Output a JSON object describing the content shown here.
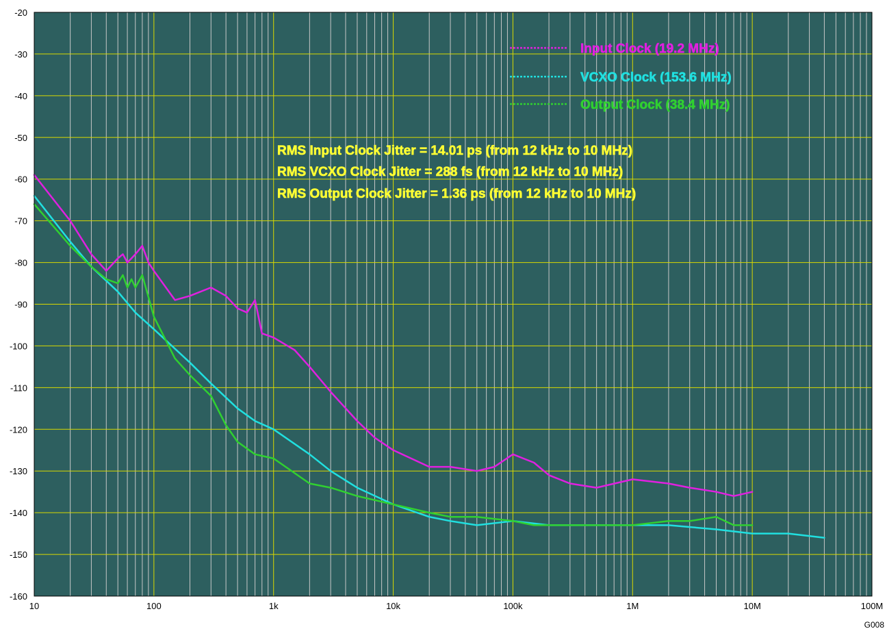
{
  "chart_data": {
    "type": "line",
    "x_scale": "log",
    "xlim": [
      10,
      100000000
    ],
    "ylim": [
      -160,
      -20
    ],
    "x_tick_values": [
      10,
      100,
      1000,
      10000,
      100000,
      1000000,
      10000000,
      100000000
    ],
    "x_tick_labels": [
      "10",
      "100",
      "1k",
      "10k",
      "100k",
      "1M",
      "10M",
      "100M"
    ],
    "y_tick_values": [
      -20,
      -30,
      -40,
      -50,
      -60,
      -70,
      -80,
      -90,
      -100,
      -110,
      -120,
      -130,
      -140,
      -150,
      -160
    ],
    "y_tick_labels": [
      "-20",
      "-30",
      "-40",
      "-50",
      "-60",
      "-70",
      "-80",
      "-90",
      "-100",
      "-110",
      "-120",
      "-130",
      "-140",
      "-150",
      "-160"
    ],
    "grid": true,
    "legend_position": "top-right",
    "colors": {
      "plot_background": "#2d5f5f",
      "major_grid": "#d9d900",
      "minor_grid": "#c8c8c8",
      "annotation": "#ffff33"
    },
    "series": [
      {
        "name": "Input Clock (19.2 MHz)",
        "color": "#e020e0",
        "x": [
          10,
          20,
          30,
          40,
          50,
          55,
          60,
          65,
          70,
          80,
          90,
          100,
          150,
          200,
          300,
          400,
          500,
          600,
          700,
          800,
          1000,
          1500,
          2000,
          3000,
          5000,
          7000,
          10000,
          20000,
          30000,
          50000,
          70000,
          100000,
          150000,
          200000,
          300000,
          500000,
          1000000,
          2000000,
          3000000,
          5000000,
          7000000,
          10000000
        ],
        "values": [
          -59,
          -70,
          -78,
          -82,
          -79,
          -78,
          -80,
          -79,
          -78,
          -76,
          -80,
          -82,
          -89,
          -88,
          -86,
          -88,
          -91,
          -92,
          -89,
          -97,
          -98,
          -101,
          -105,
          -111,
          -118,
          -122,
          -125,
          -129,
          -129,
          -130,
          -129,
          -126,
          -128,
          -131,
          -133,
          -134,
          -132,
          -133,
          -134,
          -135,
          -136,
          -135
        ]
      },
      {
        "name": "VCXO Clock (153.6 MHz)",
        "color": "#20e0e0",
        "x": [
          10,
          20,
          30,
          50,
          70,
          100,
          200,
          300,
          500,
          700,
          1000,
          2000,
          3000,
          5000,
          10000,
          20000,
          30000,
          50000,
          100000,
          200000,
          500000,
          1000000,
          2000000,
          5000000,
          10000000,
          20000000,
          40000000
        ],
        "values": [
          -64,
          -75,
          -81,
          -87,
          -92,
          -96,
          -104,
          -109,
          -115,
          -118,
          -120,
          -126,
          -130,
          -134,
          -138,
          -141,
          -142,
          -143,
          -142,
          -143,
          -143,
          -143,
          -143,
          -144,
          -145,
          -145,
          -146
        ]
      },
      {
        "name": "Output Clock (38.4 MHz)",
        "color": "#30d030",
        "x": [
          10,
          20,
          30,
          40,
          50,
          55,
          60,
          65,
          70,
          80,
          100,
          150,
          200,
          300,
          400,
          500,
          700,
          1000,
          2000,
          3000,
          5000,
          10000,
          20000,
          30000,
          50000,
          100000,
          150000,
          200000,
          300000,
          500000,
          1000000,
          2000000,
          3000000,
          5000000,
          7000000,
          10000000
        ],
        "values": [
          -66,
          -76,
          -81,
          -84,
          -85,
          -83,
          -86,
          -84,
          -86,
          -83,
          -93,
          -103,
          -107,
          -112,
          -119,
          -123,
          -126,
          -127,
          -133,
          -134,
          -136,
          -138,
          -140,
          -141,
          -141,
          -142,
          -143,
          -143,
          -143,
          -143,
          -143,
          -142,
          -142,
          -141,
          -143,
          -143
        ]
      }
    ],
    "annotations": [
      "RMS Input Clock Jitter = 14.01 ps (from 12 kHz to 10 MHz)",
      "RMS VCXO Clock Jitter = 288 fs (from 12 kHz to 10 MHz)",
      "RMS Output Clock Jitter = 1.36 ps (from 12 kHz to 10 MHz)"
    ]
  },
  "figure_id": "G008"
}
